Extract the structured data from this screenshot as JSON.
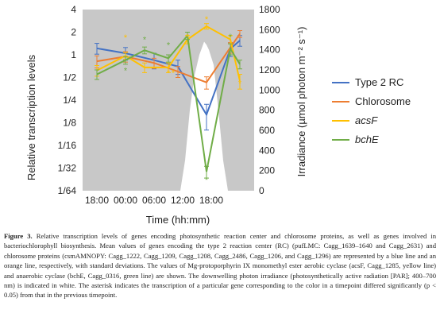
{
  "chart_data": {
    "type": "line",
    "xlabel": "Time (hh:mm)",
    "ylabel": "Relative transcription levels",
    "y2label": "Irradiance (µmol photon m⁻² s⁻¹)",
    "x_ticks": [
      "18:00",
      "00:00",
      "06:00",
      "12:00",
      "18:00"
    ],
    "y_ticks": [
      "4",
      "2",
      "1",
      "1/2",
      "1/4",
      "1/8",
      "1/16",
      "1/32",
      "1/64"
    ],
    "y2_ticks": [
      "1800",
      "1600",
      "1400",
      "1200",
      "1000",
      "800",
      "600",
      "400",
      "200",
      "0"
    ],
    "ylim_log2": [
      -6,
      2
    ],
    "y2lim": [
      0,
      1800
    ],
    "x_hours": [
      18,
      21,
      24,
      27,
      30,
      33,
      35,
      36,
      39,
      42,
      45,
      48,
      51
    ],
    "grid": false,
    "legend_position": "right",
    "series": [
      {
        "name": "Type 2 RC",
        "color": "#4472c4",
        "italic": false,
        "x": [
          18,
          24,
          30,
          35,
          41,
          46,
          48
        ],
        "y": [
          1.22,
          1.05,
          0.85,
          0.7,
          0.16,
          1.2,
          1.55
        ],
        "err": [
          0.2,
          0.2,
          0.2,
          0.15,
          0.06,
          0.25,
          0.25
        ]
      },
      {
        "name": "Chlorosome",
        "color": "#ed7d31",
        "italic": false,
        "x": [
          18,
          24,
          30,
          35,
          41,
          46,
          48
        ],
        "y": [
          0.82,
          0.95,
          0.78,
          0.6,
          0.43,
          1.25,
          1.9
        ],
        "err": [
          0.15,
          0.15,
          0.12,
          0.1,
          0.08,
          0.2,
          0.2
        ]
      },
      {
        "name": "acsF",
        "color": "#ffc000",
        "italic": true,
        "x": [
          18,
          24,
          28,
          33,
          37,
          41,
          46,
          48
        ],
        "y": [
          0.62,
          0.97,
          0.68,
          0.68,
          1.6,
          2.4,
          1.6,
          0.45
        ],
        "err": [
          0.1,
          0.1,
          0.1,
          0.1,
          0.2,
          0.2,
          0.2,
          0.1
        ]
      },
      {
        "name": "bchE",
        "color": "#70ad47",
        "italic": false,
        "x": [
          18,
          24,
          28,
          33,
          37,
          41,
          46,
          48
        ],
        "y": [
          0.55,
          0.85,
          1.15,
          0.9,
          1.8,
          0.028,
          1.2,
          0.75
        ],
        "err": [
          0.08,
          0.1,
          0.12,
          0.1,
          0.2,
          0.005,
          0.2,
          0.1
        ]
      }
    ],
    "significance_marks": [
      {
        "color": "#ffc000",
        "x": 24,
        "y": 1.7
      },
      {
        "color": "#70ad47",
        "x": 28,
        "y": 1.6
      },
      {
        "color": "#70ad47",
        "x": 33,
        "y": 1.35
      },
      {
        "color": "#ffc000",
        "x": 33,
        "y": 0.58
      },
      {
        "color": "#ffc000",
        "x": 34,
        "y": 0.58
      },
      {
        "color": "#ffc000",
        "x": 37,
        "y": 1.75
      },
      {
        "color": "#ffc000",
        "x": 41,
        "y": 3.0
      },
      {
        "color": "#70ad47",
        "x": 24,
        "y": 0.62
      },
      {
        "color": "#70ad47",
        "x": 41,
        "y": 0.022
      },
      {
        "color": "#70ad47",
        "x": 46,
        "y": 1.75
      },
      {
        "color": "#ffc000",
        "x": 48,
        "y": 0.42
      }
    ],
    "irradiance": {
      "x": [
        35.5,
        36.5,
        37.5,
        38.5,
        39.5,
        40.5,
        41,
        41.5,
        42.5,
        43.5,
        44.5,
        45.5
      ],
      "y": [
        0,
        300,
        800,
        1150,
        1350,
        1480,
        1450,
        1400,
        1250,
        800,
        300,
        0
      ]
    }
  },
  "caption": {
    "figure_label": "Figure 3.",
    "text": " Relative transcription levels of genes encoding photosynthetic reaction center and chlorosome proteins, as well as genes involved in bacteriochlorophyll biosynthesis. Mean values of genes encoding the type 2 reaction center (RC) (pufLMC: Cagg_1639–1640 and Cagg_2631) and chlorosome proteins (csmAMNOPY: Cagg_1222, Cagg_1209, Cagg_1208, Cagg_2486, Cagg_1206, and Cagg_1296) are represented by a blue line and an orange line, respectively, with standard deviations. The values of Mg-protoporphyrin IX monomethyl ester aerobic cyclase (acsF, Cagg_1285, yellow line) and anaerobic cyclase (bchE, Cagg_0316, green line) are shown. The downwelling photon irradiance (photosynthetically active radiation [PAR]; 400–700 nm) is indicated in white. The asterisk indicates the transcription of a particular gene corresponding to the color in a timepoint differed significantly (p < 0.05) from that in the previous timepoint."
  }
}
